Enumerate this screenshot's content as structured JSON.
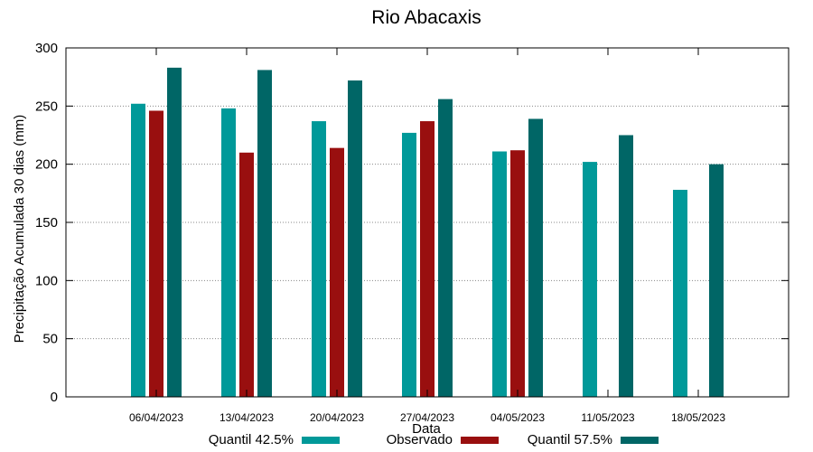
{
  "chart_data": {
    "type": "bar",
    "title": "Rio Abacaxis",
    "xlabel": "Data",
    "ylabel": "Precipitação Acumulada 30 dias (mm)",
    "ylim": [
      0,
      300
    ],
    "yticks": [
      0,
      50,
      100,
      150,
      200,
      250,
      300
    ],
    "grid": true,
    "legend_position": "bottom",
    "categories": [
      "06/04/2023",
      "13/04/2023",
      "20/04/2023",
      "27/04/2023",
      "04/05/2023",
      "11/05/2023",
      "18/05/2023"
    ],
    "series": [
      {
        "name": "Quantil 42.5%",
        "color": "#009999",
        "values": [
          252,
          248,
          237,
          227,
          211,
          202,
          178
        ]
      },
      {
        "name": "Observado",
        "color": "#990f0f",
        "values": [
          246,
          210,
          214,
          237,
          212,
          null,
          null
        ]
      },
      {
        "name": "Quantil 57.5%",
        "color": "#006666",
        "values": [
          283,
          281,
          272,
          256,
          239,
          225,
          200
        ]
      }
    ]
  }
}
